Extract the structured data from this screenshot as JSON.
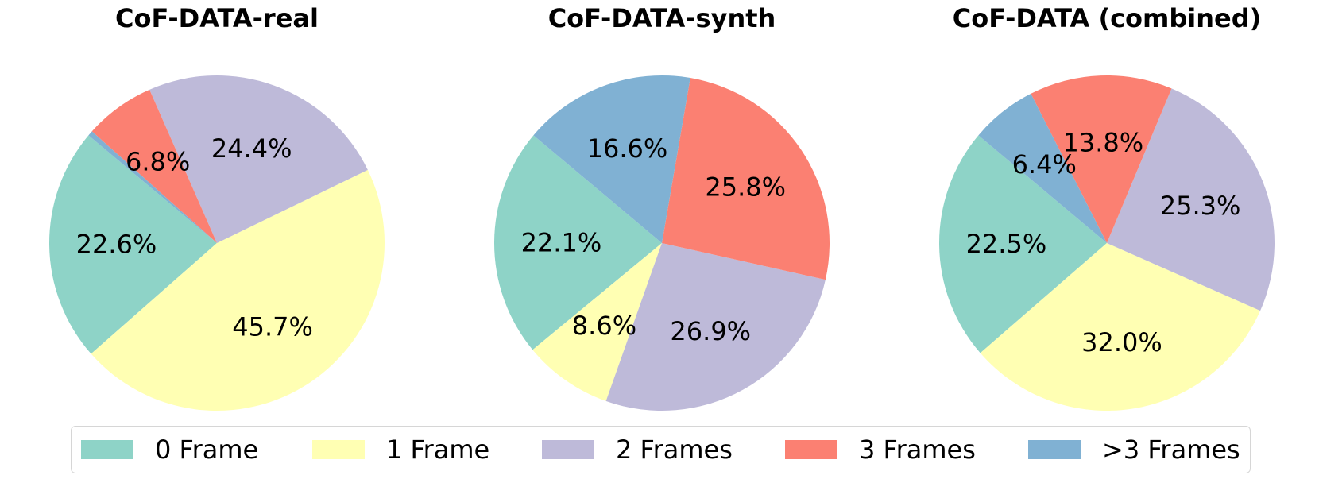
{
  "chart_data": [
    {
      "type": "pie",
      "title": "CoF-DATA-real",
      "categories": [
        "0 Frame",
        "1 Frame",
        "2 Frames",
        "3 Frames",
        ">3 Frames"
      ],
      "values": [
        22.6,
        45.7,
        24.4,
        6.8,
        0.5
      ],
      "labels": [
        "22.6%",
        "45.7%",
        "24.4%",
        "6.8%",
        ""
      ]
    },
    {
      "type": "pie",
      "title": "CoF-DATA-synth",
      "categories": [
        "0 Frame",
        "1 Frame",
        "2 Frames",
        "3 Frames",
        ">3 Frames"
      ],
      "values": [
        22.1,
        8.6,
        26.9,
        25.8,
        16.6
      ],
      "labels": [
        "22.1%",
        "8.6%",
        "26.9%",
        "25.8%",
        "16.6%"
      ]
    },
    {
      "type": "pie",
      "title": "CoF-DATA (combined)",
      "categories": [
        "0 Frame",
        "1 Frame",
        "2 Frames",
        "3 Frames",
        ">3 Frames"
      ],
      "values": [
        22.5,
        32.0,
        25.3,
        13.8,
        6.4
      ],
      "labels": [
        "22.5%",
        "32.0%",
        "25.3%",
        "13.8%",
        "6.4%"
      ]
    }
  ],
  "legend": {
    "position": "bottom-center",
    "items": [
      {
        "label": "0 Frame",
        "color": "#8ed3c7"
      },
      {
        "label": "1 Frame",
        "color": "#ffffb3"
      },
      {
        "label": "2 Frames",
        "color": "#bebad9"
      },
      {
        "label": "3 Frames",
        "color": "#fb8072"
      },
      {
        "label": ">3 Frames",
        "color": "#80b1d3"
      }
    ]
  }
}
